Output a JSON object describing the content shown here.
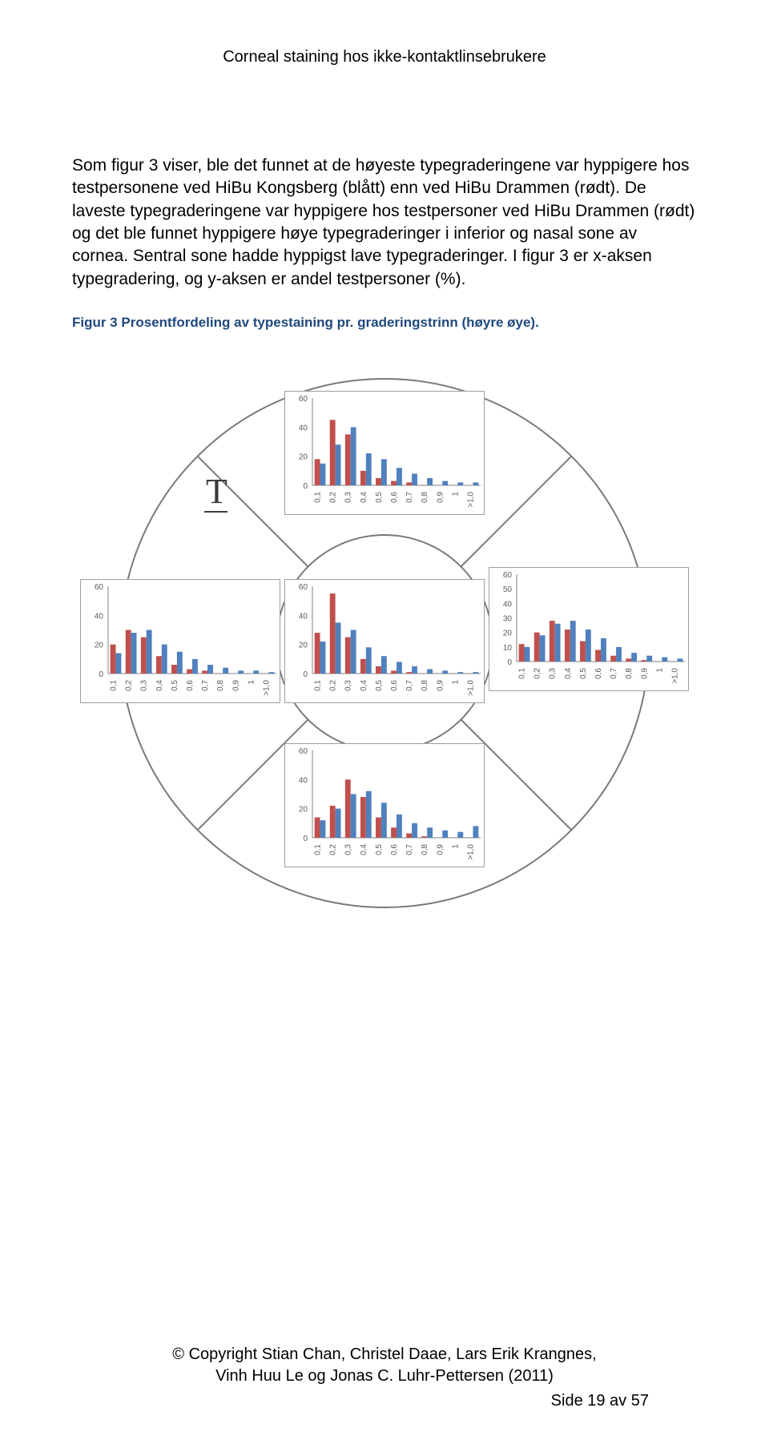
{
  "header": {
    "title": "Corneal staining hos ikke-kontaktlinsebrukere"
  },
  "paragraph": "Som figur 3 viser, ble det funnet at de høyeste typegraderingene var hyppigere hos testpersonene ved HiBu Kongsberg (blått) enn ved HiBu Drammen (rødt). De laveste typegraderingene var hyppigere hos testpersoner ved HiBu Drammen (rødt) og det ble funnet hyppigere høye typegraderinger i inferior og nasal sone av cornea. Sentral sone hadde hyppigst lave typegraderinger. I figur 3 er x-aksen typegradering, og y-aksen er andel testpersoner (%).",
  "caption": "Figur 3 Prosentfordeling av typestaining pr. graderingstrinn (høyre øye).",
  "chart_style": {
    "bar_blue": "#4f81bd",
    "bar_red": "#c0504d",
    "axis_color": "#808080",
    "tick_font_size": 10,
    "tick_color": "#595959",
    "x_labels": [
      "0,1",
      "0,2",
      "0,3",
      "0,4",
      "0,5",
      "0,6",
      "0,7",
      "0,8",
      "0,9",
      "1",
      ">1,0"
    ]
  },
  "t_marker": "T",
  "charts": {
    "superior": {
      "y_ticks": [
        0,
        20,
        40,
        60
      ],
      "ymax": 60,
      "red": [
        18,
        45,
        35,
        10,
        5,
        3,
        2,
        0,
        0,
        0,
        0
      ],
      "blue": [
        15,
        28,
        40,
        22,
        18,
        12,
        8,
        5,
        3,
        2,
        2
      ]
    },
    "temporal": {
      "y_ticks": [
        0,
        20,
        40,
        60
      ],
      "ymax": 60,
      "red": [
        20,
        30,
        25,
        12,
        6,
        3,
        2,
        0,
        0,
        0,
        0
      ],
      "blue": [
        14,
        28,
        30,
        20,
        15,
        10,
        6,
        4,
        2,
        2,
        1
      ]
    },
    "central": {
      "y_ticks": [
        0,
        20,
        40,
        60
      ],
      "ymax": 60,
      "red": [
        28,
        55,
        25,
        10,
        5,
        2,
        1,
        0,
        0,
        0,
        0
      ],
      "blue": [
        22,
        35,
        30,
        18,
        12,
        8,
        5,
        3,
        2,
        1,
        1
      ]
    },
    "nasal": {
      "y_ticks": [
        0,
        10,
        20,
        30,
        40,
        50,
        60
      ],
      "ymax": 60,
      "red": [
        12,
        20,
        28,
        22,
        14,
        8,
        4,
        2,
        1,
        0,
        0
      ],
      "blue": [
        10,
        18,
        26,
        28,
        22,
        16,
        10,
        6,
        4,
        3,
        2
      ]
    },
    "inferior": {
      "y_ticks": [
        0,
        20,
        40,
        60
      ],
      "ymax": 60,
      "red": [
        14,
        22,
        40,
        28,
        14,
        7,
        3,
        1,
        0,
        0,
        0
      ],
      "blue": [
        12,
        20,
        30,
        32,
        24,
        16,
        10,
        7,
        5,
        4,
        8
      ]
    }
  },
  "footer": {
    "line1": "© Copyright Stian Chan, Christel Daae, Lars Erik Krangnes,",
    "line2": "Vinh Huu Le og Jonas C. Luhr-Pettersen (2011)",
    "page": "Side 19 av 57"
  }
}
